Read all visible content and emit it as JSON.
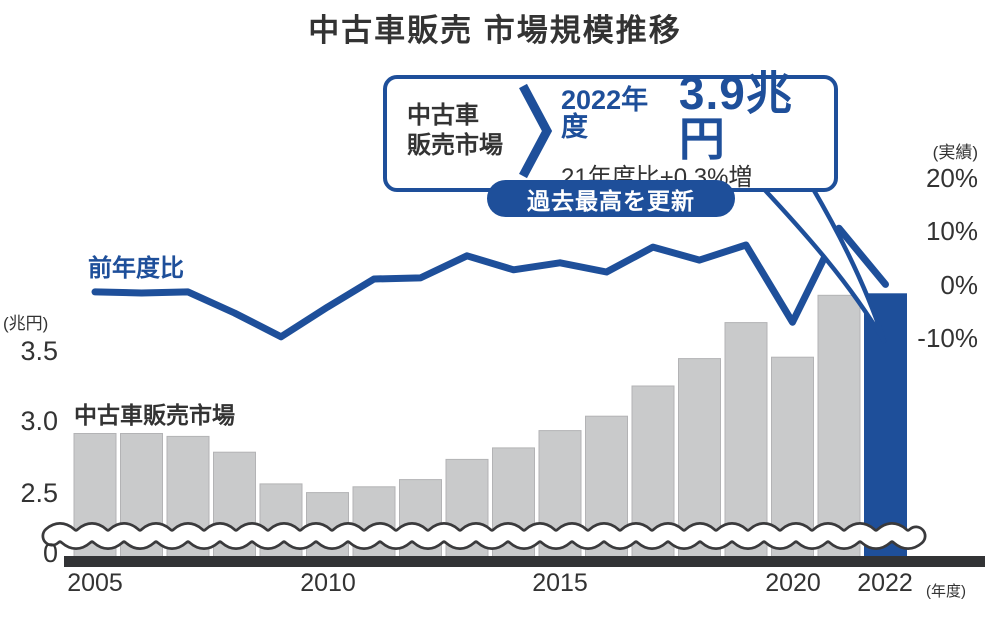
{
  "title": "中古車販売 市場規模推移",
  "colors": {
    "accent_blue": "#1e4f9a",
    "bar_gray": "#c9cacb",
    "bar_stroke": "#b3b3b5",
    "text_dark": "#333333",
    "baseline_dark": "#323335",
    "wave_edge": "#3a3a3c",
    "white": "#ffffff"
  },
  "series_labels": {
    "line": "前年度比",
    "bar": "中古車販売市場"
  },
  "axes": {
    "left": {
      "unit": "(兆円)",
      "ticks": [
        "3.5",
        "3.0",
        "2.5",
        "0"
      ]
    },
    "right": {
      "unit": "(実績)",
      "ticks": [
        "20%",
        "10%",
        "0%",
        "-10%"
      ]
    },
    "x": {
      "ticks": [
        "2005",
        "2010",
        "2015",
        "2020",
        "2022"
      ],
      "unit": "(年度)"
    }
  },
  "callout": {
    "source_line1": "中古車",
    "source_line2": "販売市場",
    "year": "2022年度",
    "value": "3.9兆円",
    "comparison": "21年度比+0.3%増",
    "badge": "過去最高を更新"
  },
  "chart_data": {
    "type": "combo (bar + line, broken left axis)",
    "title": "中古車販売 市場規模推移",
    "categories": [
      2005,
      2006,
      2007,
      2008,
      2009,
      2010,
      2011,
      2012,
      2013,
      2014,
      2015,
      2016,
      2017,
      2018,
      2019,
      2020,
      2021,
      2022
    ],
    "series": [
      {
        "name": "中古車販売市場",
        "type": "bar",
        "axis": "left",
        "unit": "兆円",
        "values": [
          2.92,
          2.92,
          2.9,
          2.79,
          2.57,
          2.51,
          2.55,
          2.6,
          2.74,
          2.82,
          2.94,
          3.04,
          3.25,
          3.44,
          3.69,
          3.45,
          3.88,
          3.89
        ],
        "highlight_year": 2022
      },
      {
        "name": "前年度比",
        "type": "line",
        "axis": "right",
        "unit": "%",
        "values": [
          -1.1,
          -1.3,
          -1.1,
          -5.0,
          -9.4,
          -3.9,
          1.3,
          1.5,
          5.6,
          3.0,
          4.3,
          2.6,
          7.2,
          4.8,
          7.6,
          -6.7,
          10.7,
          0.3
        ]
      }
    ],
    "left_axis": {
      "label": "(兆円)",
      "ticks": [
        3.5,
        3.0,
        2.5,
        0
      ],
      "broken_axis": true
    },
    "right_axis": {
      "label": "(実績)",
      "ticks_percent": [
        20,
        10,
        0,
        -10
      ]
    },
    "x_axis": {
      "label": "(年度)",
      "labeled_ticks": [
        2005,
        2010,
        2015,
        2020,
        2022
      ]
    },
    "grid": false,
    "annotation": {
      "target_year": 2022,
      "source": "中古車販売市場",
      "value": "3.9兆円",
      "comparison": "21年度比+0.3%増",
      "badge": "過去最高を更新"
    }
  }
}
